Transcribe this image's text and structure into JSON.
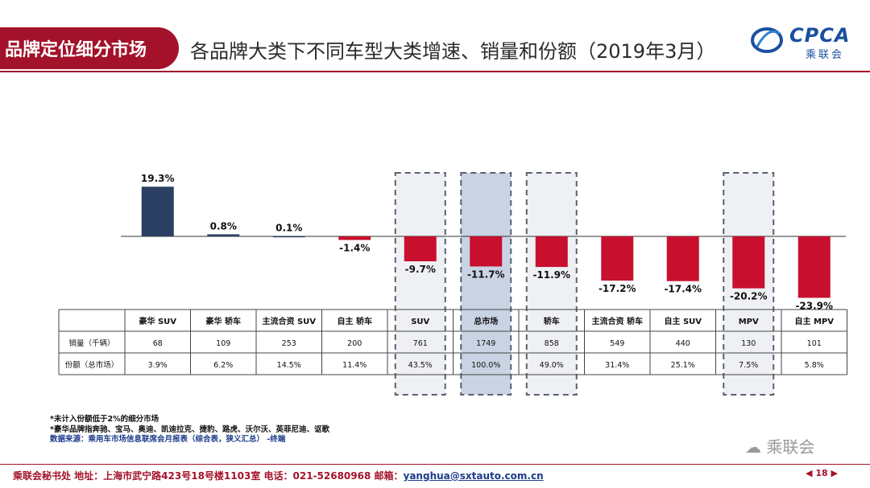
{
  "header": {
    "badge": "品牌定位细分市场",
    "title": "各品牌大类下不同车型大类增速、销量和份额（2019年3月）",
    "logo_text": "CPCA",
    "logo_cn": "乘联会"
  },
  "chart_data": {
    "type": "bar",
    "categories": [
      "豪华 SUV",
      "豪华 轿车",
      "主流合资 SUV",
      "自主 轿车",
      "SUV",
      "总市场",
      "轿车",
      "主流合资 轿车",
      "自主 SUV",
      "MPV",
      "自主 MPV"
    ],
    "values": [
      19.3,
      0.8,
      0.1,
      -1.4,
      -9.7,
      -11.7,
      -11.9,
      -17.2,
      -17.4,
      -20.2,
      -23.9
    ],
    "labels": [
      "19.3%",
      "0.8%",
      "0.1%",
      "-1.4%",
      "-9.7%",
      "-11.7%",
      "-11.9%",
      "-17.2%",
      "-17.4%",
      "-20.2%",
      "-23.9%"
    ],
    "ylim": [
      -26,
      22
    ],
    "unit": "%",
    "highlighted": [
      "SUV",
      "总市场",
      "轿车",
      "MPV"
    ],
    "table": {
      "rows": [
        {
          "label": "销量（千辆）",
          "values": [
            "68",
            "109",
            "253",
            "200",
            "761",
            "1749",
            "858",
            "549",
            "440",
            "130",
            "101"
          ]
        },
        {
          "label": "份额（总市场）",
          "values": [
            "3.9%",
            "6.2%",
            "14.5%",
            "11.4%",
            "43.5%",
            "100.0%",
            "49.0%",
            "31.4%",
            "25.1%",
            "7.5%",
            "5.8%"
          ]
        }
      ]
    },
    "colors": {
      "positive": "#2b3f63",
      "negative": "#c8102e",
      "highlight": "#eef0f3",
      "highlight_main": "#c9d3e3"
    }
  },
  "notes": {
    "line1": "*未计入份额低于2%的细分市场",
    "line2": "*豪华品牌指奔驰、宝马、奥迪、凯迪拉克、捷豹、路虎、沃尔沃、英菲尼迪、讴歌",
    "line3": "数据来源：乘用车市场信息联席会月报表（综合表，狭义汇总） -终端"
  },
  "watermark": "乘联会",
  "footer": {
    "text": "乘联会秘书处   地址：上海市武宁路423号18号楼1103室  电话：021-52680968   邮箱：",
    "email": "yanghua@sxtauto.com.cn"
  },
  "pager": {
    "prev": "◀",
    "page": "18",
    "next": "▶"
  }
}
